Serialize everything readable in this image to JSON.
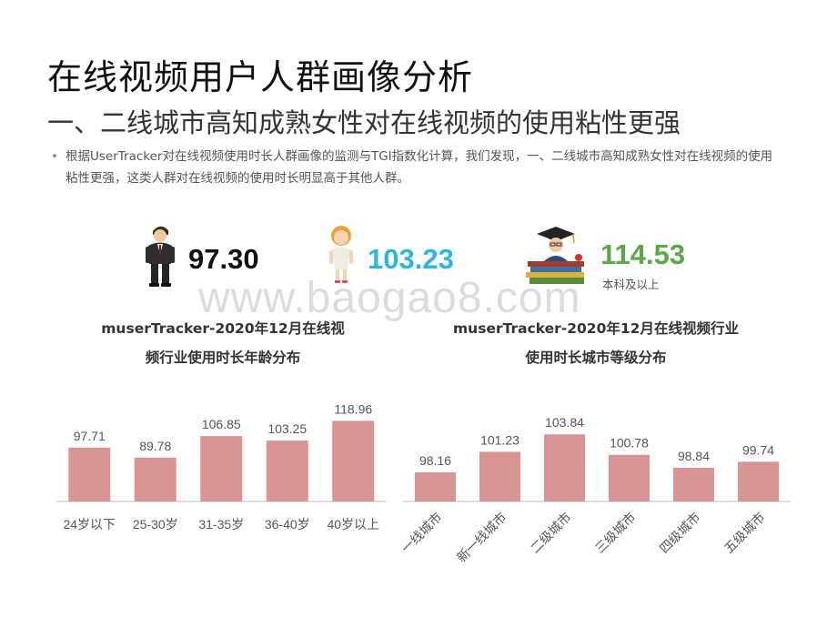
{
  "page": {
    "title": "在线视频用户人群画像分析",
    "subtitle": "一、二线城市高知成熟女性对在线视频的使用粘性更强",
    "bullet": "根据UserTracker对在线视频使用时长人群画像的监测与TGI指数化计算，我们发现，一、二线城市高知成熟女性对在线视频的使用粘性更强，这类人群对在线视频的使用时长明显高于其他人群。",
    "watermark": "www.baogao8.com"
  },
  "stats": [
    {
      "value": "97.30",
      "color": "#111111",
      "icon": "male-figure-icon",
      "label": ""
    },
    {
      "value": "103.23",
      "color": "#2fb6dc",
      "icon": "female-figure-icon",
      "label": ""
    },
    {
      "value": "114.53",
      "color": "#5aa846",
      "icon": "graduate-books-icon",
      "label": "本科及以上"
    }
  ],
  "colors": {
    "bar": "#d99594",
    "axis": "#bfbfbf",
    "label": "#555555"
  },
  "chart_data": [
    {
      "type": "bar",
      "title": "muserTracker-2020年12月在线视频行业使用时长年龄分布",
      "title_lines": [
        "muserTracker-2020年12月在线视",
        "频行业使用时长年龄分布"
      ],
      "categories": [
        "24岁以下",
        "25-30岁",
        "31-35岁",
        "36-40岁",
        "40岁以上"
      ],
      "values": [
        97.71,
        89.78,
        106.85,
        103.25,
        118.96
      ],
      "data_labels": [
        "97.71",
        "89.78",
        "106.85",
        "103.25",
        "118.96"
      ],
      "ylim": [
        55,
        125
      ],
      "grid": false,
      "legend": "none"
    },
    {
      "type": "bar",
      "title": "muserTracker-2020年12月在线视频行业使用时长城市等级分布",
      "title_lines": [
        "muserTracker-2020年12月在线视频行业",
        "使用时长城市等级分布"
      ],
      "categories": [
        "一线城市",
        "新一线城市",
        "二级城市",
        "三级城市",
        "四级城市",
        "五级城市"
      ],
      "values": [
        98.16,
        101.23,
        103.84,
        100.78,
        98.84,
        99.74
      ],
      "data_labels": [
        "98.16",
        "101.23",
        "103.84",
        "100.78",
        "98.84",
        "99.74"
      ],
      "ylim": [
        93.8,
        107
      ],
      "grid": false,
      "legend": "none"
    }
  ]
}
